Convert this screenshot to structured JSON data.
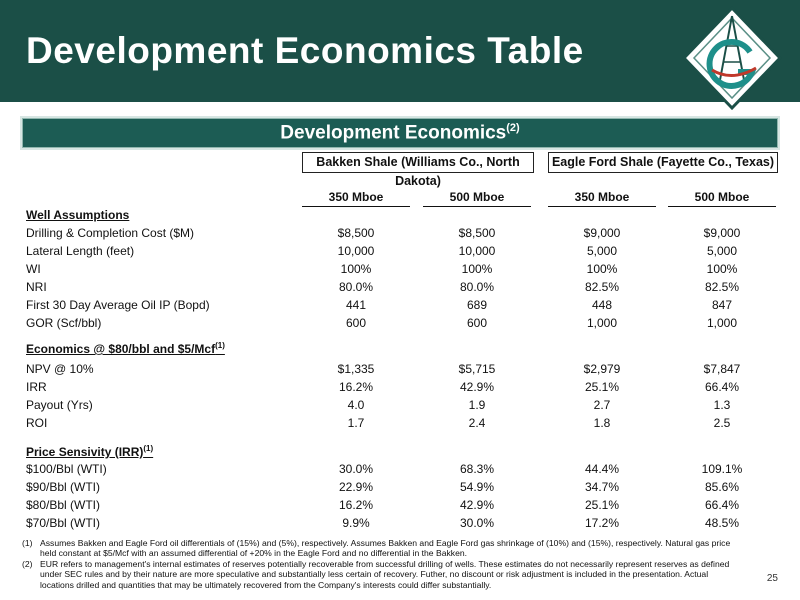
{
  "header": {
    "title": "Development Economics Table"
  },
  "banner": {
    "title": "Development Economics",
    "sup": "(2)"
  },
  "groups": {
    "bakken": "Bakken Shale (Williams Co., North Dakota)",
    "eagle": "Eagle Ford Shale (Fayette Co., Texas)"
  },
  "columns": [
    "350 Mboe",
    "500 Mboe",
    "350 Mboe",
    "500 Mboe"
  ],
  "sections": {
    "well": {
      "label": "Well Assumptions"
    },
    "economics": {
      "label": "Economics @ $80/bbl and $5/Mcf",
      "sup": "(1)"
    },
    "price": {
      "label": "Price Sensivity (IRR)",
      "sup": "(1)"
    }
  },
  "rows": [
    {
      "label": "Drilling & Completion Cost ($M)",
      "values": [
        "$8,500",
        "$8,500",
        "$9,000",
        "$9,000"
      ]
    },
    {
      "label": "Lateral Length (feet)",
      "values": [
        "10,000",
        "10,000",
        "5,000",
        "5,000"
      ]
    },
    {
      "label": "WI",
      "values": [
        "100%",
        "100%",
        "100%",
        "100%"
      ]
    },
    {
      "label": "NRI",
      "values": [
        "80.0%",
        "80.0%",
        "82.5%",
        "82.5%"
      ]
    },
    {
      "label": "First 30 Day Average Oil IP (Bopd)",
      "values": [
        "441",
        "689",
        "448",
        "847"
      ]
    },
    {
      "label": "GOR (Scf/bbl)",
      "values": [
        "600",
        "600",
        "1,000",
        "1,000"
      ]
    },
    {
      "label": "NPV @ 10%",
      "values": [
        "$1,335",
        "$5,715",
        "$2,979",
        "$7,847"
      ]
    },
    {
      "label": "IRR",
      "values": [
        "16.2%",
        "42.9%",
        "25.1%",
        "66.4%"
      ]
    },
    {
      "label": "Payout (Yrs)",
      "values": [
        "4.0",
        "1.9",
        "2.7",
        "1.3"
      ]
    },
    {
      "label": "ROI",
      "values": [
        "1.7",
        "2.4",
        "1.8",
        "2.5"
      ]
    },
    {
      "label": "$100/Bbl (WTI)",
      "values": [
        "30.0%",
        "68.3%",
        "44.4%",
        "109.1%"
      ]
    },
    {
      "label": "$90/Bbl (WTI)",
      "values": [
        "22.9%",
        "54.9%",
        "34.7%",
        "85.6%"
      ]
    },
    {
      "label": "$80/Bbl (WTI)",
      "values": [
        "16.2%",
        "42.9%",
        "25.1%",
        "66.4%"
      ]
    },
    {
      "label": "$70/Bbl (WTI)",
      "values": [
        "9.9%",
        "30.0%",
        "17.2%",
        "48.5%"
      ]
    }
  ],
  "footnotes": [
    {
      "num": "(1)",
      "text": "Assumes Bakken and Eagle Ford oil differentials of (15%) and (5%), respectively. Assumes Bakken and Eagle Ford gas shrinkage of (10%) and (15%), respectively. Natural gas price held constant at $5/Mcf with an assumed differential of +20% in the Eagle Ford and no differential in the Bakken."
    },
    {
      "num": "(2)",
      "text": "EUR refers to management's internal estimates of reserves potentially recoverable from successful drilling of wells. These estimates do not necessarily represent reserves as defined under SEC rules and by their nature are more speculative and substantially less certain of recovery.  Futher, no discount or risk adjustment is included in the presentation. Actual locations drilled and quantities that may be ultimately recovered from the Company's interests could differ substantially."
    }
  ],
  "page_number": "25"
}
